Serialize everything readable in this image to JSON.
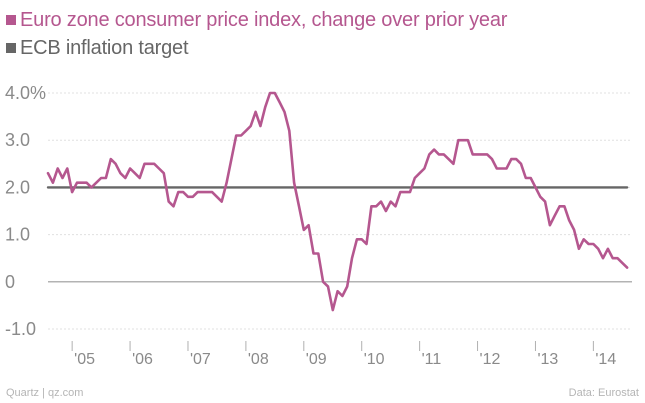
{
  "legend": [
    {
      "label": "Euro zone consumer price index, change over prior year",
      "color": "#b5578f"
    },
    {
      "label": "ECB inflation target",
      "color": "#666666"
    }
  ],
  "footer": {
    "source_left": "Quartz | qz.com",
    "source_right": "Data: Eurostat"
  },
  "chart_data": {
    "type": "line",
    "title": "",
    "xlabel": "",
    "ylabel": "",
    "ylim": [
      -1.0,
      4.0
    ],
    "xlim": [
      2004.583,
      2014.667
    ],
    "y_ticks": [
      {
        "value": 4.0,
        "label": "4.0%"
      },
      {
        "value": 3.0,
        "label": "3.0"
      },
      {
        "value": 2.0,
        "label": "2.0"
      },
      {
        "value": 1.0,
        "label": "1.0"
      },
      {
        "value": 0.0,
        "label": "0"
      },
      {
        "value": -1.0,
        "label": "-1.0"
      }
    ],
    "x_ticks": [
      {
        "value": 2005,
        "label": "'05"
      },
      {
        "value": 2006,
        "label": "'06"
      },
      {
        "value": 2007,
        "label": "'07"
      },
      {
        "value": 2008,
        "label": "'08"
      },
      {
        "value": 2009,
        "label": "'09"
      },
      {
        "value": 2010,
        "label": "'10"
      },
      {
        "value": 2011,
        "label": "'11"
      },
      {
        "value": 2012,
        "label": "'12"
      },
      {
        "value": 2013,
        "label": "'13"
      },
      {
        "value": 2014,
        "label": "'14"
      }
    ],
    "series": [
      {
        "name": "Euro zone consumer price index, change over prior year",
        "color": "#b5578f",
        "points": [
          [
            2004.583,
            2.3
          ],
          [
            2004.667,
            2.1
          ],
          [
            2004.75,
            2.4
          ],
          [
            2004.833,
            2.2
          ],
          [
            2004.917,
            2.4
          ],
          [
            2005.0,
            1.9
          ],
          [
            2005.083,
            2.1
          ],
          [
            2005.167,
            2.1
          ],
          [
            2005.25,
            2.1
          ],
          [
            2005.333,
            2.0
          ],
          [
            2005.417,
            2.1
          ],
          [
            2005.5,
            2.2
          ],
          [
            2005.583,
            2.2
          ],
          [
            2005.667,
            2.6
          ],
          [
            2005.75,
            2.5
          ],
          [
            2005.833,
            2.3
          ],
          [
            2005.917,
            2.2
          ],
          [
            2006.0,
            2.4
          ],
          [
            2006.083,
            2.3
          ],
          [
            2006.167,
            2.2
          ],
          [
            2006.25,
            2.5
          ],
          [
            2006.333,
            2.5
          ],
          [
            2006.417,
            2.5
          ],
          [
            2006.5,
            2.4
          ],
          [
            2006.583,
            2.3
          ],
          [
            2006.667,
            1.7
          ],
          [
            2006.75,
            1.6
          ],
          [
            2006.833,
            1.9
          ],
          [
            2006.917,
            1.9
          ],
          [
            2007.0,
            1.8
          ],
          [
            2007.083,
            1.8
          ],
          [
            2007.167,
            1.9
          ],
          [
            2007.25,
            1.9
          ],
          [
            2007.333,
            1.9
          ],
          [
            2007.417,
            1.9
          ],
          [
            2007.5,
            1.8
          ],
          [
            2007.583,
            1.7
          ],
          [
            2007.667,
            2.1
          ],
          [
            2007.75,
            2.6
          ],
          [
            2007.833,
            3.1
          ],
          [
            2007.917,
            3.1
          ],
          [
            2008.0,
            3.2
          ],
          [
            2008.083,
            3.3
          ],
          [
            2008.167,
            3.6
          ],
          [
            2008.25,
            3.3
          ],
          [
            2008.333,
            3.7
          ],
          [
            2008.417,
            4.0
          ],
          [
            2008.5,
            4.0
          ],
          [
            2008.583,
            3.8
          ],
          [
            2008.667,
            3.6
          ],
          [
            2008.75,
            3.2
          ],
          [
            2008.833,
            2.1
          ],
          [
            2008.917,
            1.6
          ],
          [
            2009.0,
            1.1
          ],
          [
            2009.083,
            1.2
          ],
          [
            2009.167,
            0.6
          ],
          [
            2009.25,
            0.6
          ],
          [
            2009.333,
            0.0
          ],
          [
            2009.417,
            -0.1
          ],
          [
            2009.5,
            -0.6
          ],
          [
            2009.583,
            -0.2
          ],
          [
            2009.667,
            -0.3
          ],
          [
            2009.75,
            -0.1
          ],
          [
            2009.833,
            0.5
          ],
          [
            2009.917,
            0.9
          ],
          [
            2010.0,
            0.9
          ],
          [
            2010.083,
            0.8
          ],
          [
            2010.167,
            1.6
          ],
          [
            2010.25,
            1.6
          ],
          [
            2010.333,
            1.7
          ],
          [
            2010.417,
            1.5
          ],
          [
            2010.5,
            1.7
          ],
          [
            2010.583,
            1.6
          ],
          [
            2010.667,
            1.9
          ],
          [
            2010.75,
            1.9
          ],
          [
            2010.833,
            1.9
          ],
          [
            2010.917,
            2.2
          ],
          [
            2011.0,
            2.3
          ],
          [
            2011.083,
            2.4
          ],
          [
            2011.167,
            2.7
          ],
          [
            2011.25,
            2.8
          ],
          [
            2011.333,
            2.7
          ],
          [
            2011.417,
            2.7
          ],
          [
            2011.5,
            2.6
          ],
          [
            2011.583,
            2.5
          ],
          [
            2011.667,
            3.0
          ],
          [
            2011.75,
            3.0
          ],
          [
            2011.833,
            3.0
          ],
          [
            2011.917,
            2.7
          ],
          [
            2012.0,
            2.7
          ],
          [
            2012.083,
            2.7
          ],
          [
            2012.167,
            2.7
          ],
          [
            2012.25,
            2.6
          ],
          [
            2012.333,
            2.4
          ],
          [
            2012.417,
            2.4
          ],
          [
            2012.5,
            2.4
          ],
          [
            2012.583,
            2.6
          ],
          [
            2012.667,
            2.6
          ],
          [
            2012.75,
            2.5
          ],
          [
            2012.833,
            2.2
          ],
          [
            2012.917,
            2.2
          ],
          [
            2013.0,
            2.0
          ],
          [
            2013.083,
            1.8
          ],
          [
            2013.167,
            1.7
          ],
          [
            2013.25,
            1.2
          ],
          [
            2013.333,
            1.4
          ],
          [
            2013.417,
            1.6
          ],
          [
            2013.5,
            1.6
          ],
          [
            2013.583,
            1.3
          ],
          [
            2013.667,
            1.1
          ],
          [
            2013.75,
            0.7
          ],
          [
            2013.833,
            0.9
          ],
          [
            2013.917,
            0.8
          ],
          [
            2014.0,
            0.8
          ],
          [
            2014.083,
            0.7
          ],
          [
            2014.167,
            0.5
          ],
          [
            2014.25,
            0.7
          ],
          [
            2014.333,
            0.5
          ],
          [
            2014.417,
            0.5
          ],
          [
            2014.5,
            0.4
          ],
          [
            2014.583,
            0.3
          ]
        ]
      },
      {
        "name": "ECB inflation target",
        "color": "#666666",
        "points": [
          [
            2004.583,
            2.0
          ],
          [
            2014.583,
            2.0
          ]
        ]
      }
    ]
  }
}
